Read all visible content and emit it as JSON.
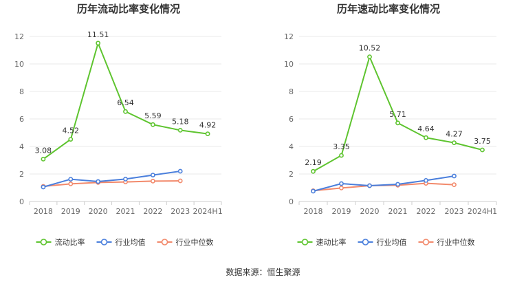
{
  "source": "数据来源：恒生聚源",
  "chart_data": [
    {
      "type": "line",
      "title": "历年流动比率变化情况",
      "categories": [
        "2018",
        "2019",
        "2020",
        "2021",
        "2022",
        "2023",
        "2024H1"
      ],
      "ylim": [
        0,
        12
      ],
      "yticks": [
        0,
        2,
        4,
        6,
        8,
        10,
        12
      ],
      "grid": true,
      "legend_position": "bottom-center",
      "series": [
        {
          "name": "流动比率",
          "color": "#5ec42f",
          "labeled": true,
          "values": [
            3.08,
            4.52,
            11.51,
            6.54,
            5.59,
            5.18,
            4.92
          ],
          "labels": [
            "3.08",
            "4.52",
            "11.51",
            "6.54",
            "5.59",
            "5.18",
            "4.92"
          ]
        },
        {
          "name": "行业均值",
          "color": "#4a7fdc",
          "labeled": false,
          "values": [
            1.05,
            1.62,
            1.45,
            1.63,
            1.92,
            2.2,
            null
          ]
        },
        {
          "name": "行业中位数",
          "color": "#f2896b",
          "labeled": false,
          "values": [
            1.1,
            1.28,
            1.38,
            1.42,
            1.48,
            1.5,
            null
          ]
        }
      ]
    },
    {
      "type": "line",
      "title": "历年速动比率变化情况",
      "categories": [
        "2018",
        "2019",
        "2020",
        "2021",
        "2022",
        "2023",
        "2024H1"
      ],
      "ylim": [
        0,
        12
      ],
      "yticks": [
        0,
        2,
        4,
        6,
        8,
        10,
        12
      ],
      "grid": true,
      "legend_position": "bottom-center",
      "series": [
        {
          "name": "速动比率",
          "color": "#5ec42f",
          "labeled": true,
          "values": [
            2.19,
            3.35,
            10.52,
            5.71,
            4.64,
            4.27,
            3.75
          ],
          "labels": [
            "2.19",
            "3.35",
            "10.52",
            "5.71",
            "4.64",
            "4.27",
            "3.75"
          ]
        },
        {
          "name": "行业均值",
          "color": "#4a7fdc",
          "labeled": false,
          "values": [
            0.75,
            1.3,
            1.15,
            1.25,
            1.53,
            1.85,
            null
          ]
        },
        {
          "name": "行业中位数",
          "color": "#f2896b",
          "labeled": false,
          "values": [
            0.78,
            0.98,
            1.15,
            1.18,
            1.32,
            1.22,
            null
          ]
        }
      ]
    }
  ]
}
